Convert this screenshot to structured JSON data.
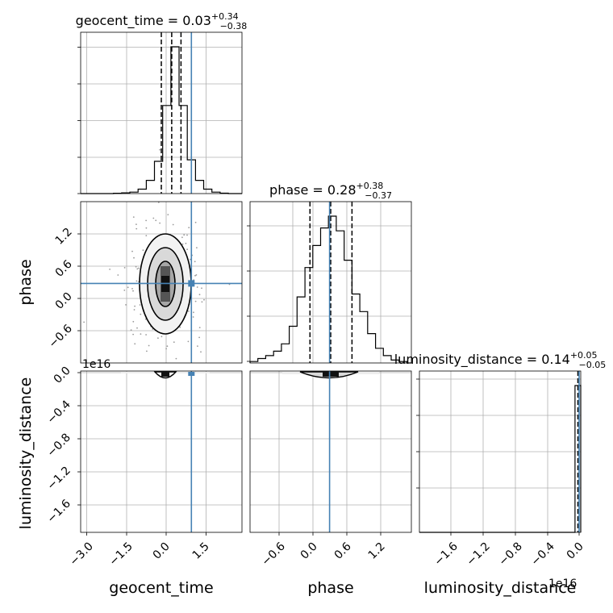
{
  "figure": {
    "type": "corner-plot"
  },
  "colors": {
    "truth": "#4682b4",
    "hist": "#000000",
    "quantile": "#000000",
    "grid": "#b0b0b0"
  },
  "titles": {
    "geocent_time": {
      "name": "geocent_time",
      "median": "0.03",
      "plus": "+0.34",
      "minus": "−0.38"
    },
    "phase": {
      "name": "phase",
      "median": "0.28",
      "plus": "+0.38",
      "minus": "−0.37"
    },
    "luminosity_distance": {
      "name": "luminosity_distance",
      "median": "0.14",
      "plus": "+0.05",
      "minus": "−0.05"
    }
  },
  "axis_labels": {
    "x0": "geocent_time",
    "x1": "phase",
    "x2": "luminosity_distance",
    "y1": "phase",
    "y2": "luminosity_distance"
  },
  "offsets": {
    "row2_y": "1e16",
    "col2_x": "1e16"
  },
  "ticks": {
    "geocent_time": [
      "−3.0",
      "−1.5",
      "0.0",
      "1.5"
    ],
    "phase": [
      "−0.6",
      "0.0",
      "0.6",
      "1.2"
    ],
    "luminosity_distance": [
      "−1.6",
      "−1.2",
      "−0.8",
      "−0.4",
      "0.0"
    ]
  },
  "chart_data": {
    "type": "corner",
    "parameters": [
      "geocent_time",
      "phase",
      "luminosity_distance"
    ],
    "ranges": {
      "geocent_time": [
        -3.3,
        2.6
      ],
      "phase": [
        -1.16,
        1.72
      ],
      "luminosity_distance": [
        -1.95e+16,
        200000000000000.0
      ]
    },
    "truths": {
      "geocent_time": 0.75,
      "phase": 0.26,
      "luminosity_distance": 0.0
    },
    "quantiles": {
      "geocent_time": [
        -0.35,
        0.03,
        0.37
      ],
      "phase": [
        -0.09,
        0.28,
        0.66
      ]
    },
    "histograms": {
      "geocent_time": {
        "bins": [
          -3.3,
          -3.0,
          -2.7,
          -2.4,
          -2.1,
          -1.8,
          -1.5,
          -1.2,
          -0.9,
          -0.6,
          -0.3,
          0.0,
          0.3,
          0.6,
          0.9,
          1.2,
          1.5,
          1.8,
          2.1,
          2.4,
          2.6
        ],
        "counts": [
          0,
          0,
          0,
          0,
          0.2,
          0.5,
          1,
          3,
          9,
          22,
          60,
          100,
          60,
          23,
          9,
          3,
          1,
          0.3,
          0,
          0
        ]
      },
      "phase": {
        "bins": [
          -1.16,
          -1.02,
          -0.88,
          -0.74,
          -0.6,
          -0.46,
          -0.32,
          -0.18,
          -0.04,
          0.1,
          0.24,
          0.38,
          0.52,
          0.66,
          0.8,
          0.94,
          1.08,
          1.22,
          1.36,
          1.5,
          1.64,
          1.72
        ],
        "counts": [
          1,
          3,
          5,
          8,
          13,
          25,
          45,
          65,
          80,
          92,
          100,
          90,
          70,
          47,
          35,
          20,
          10,
          5,
          2,
          1,
          0
        ]
      },
      "luminosity_distance": {
        "bins": [
          -1.95e+16,
          -500000000000000.0,
          200000000000000.0
        ],
        "counts": [
          0,
          100
        ]
      }
    },
    "grid": true
  }
}
